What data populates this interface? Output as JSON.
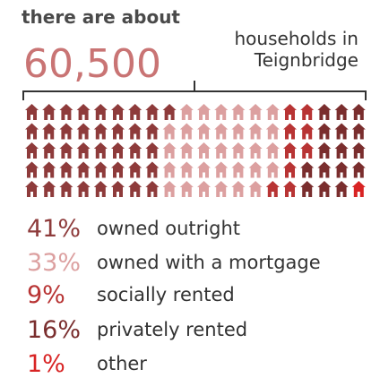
{
  "chart_data": {
    "type": "waffle",
    "intro": "there are about",
    "total": "60,500",
    "unit_lines": [
      "households in",
      "Teignbridge"
    ],
    "categories": [
      "owned outright",
      "owned with a mortgage",
      "socially rented",
      "privately rented",
      "other"
    ],
    "values": [
      41,
      33,
      9,
      16,
      1
    ],
    "value_labels": [
      "41%",
      "33%",
      "9%",
      "16%",
      "1%"
    ],
    "colors": [
      "#8e3b3b",
      "#dca0a0",
      "#b83434",
      "#7a2e2e",
      "#d82424"
    ]
  }
}
